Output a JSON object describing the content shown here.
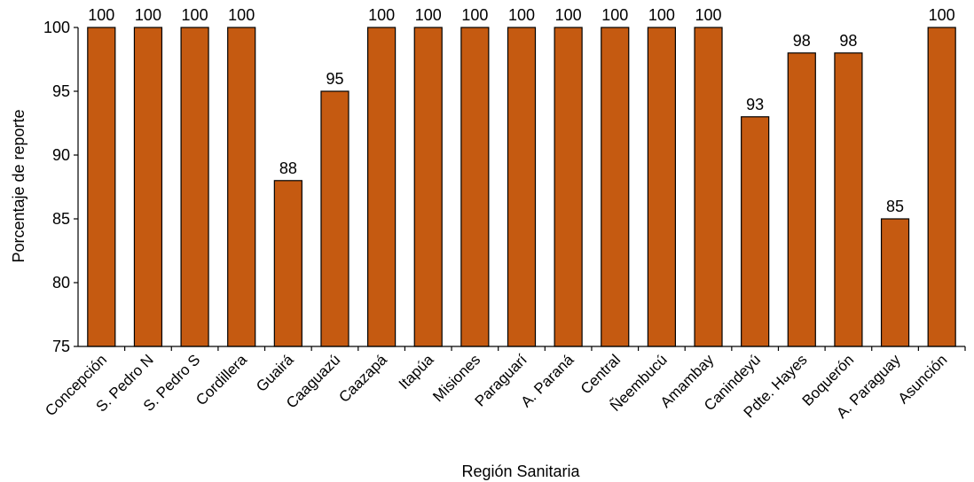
{
  "chart_data": {
    "type": "bar",
    "title": "",
    "xlabel": "Región Sanitaria",
    "ylabel": "Porcentaje de reporte",
    "ylim": [
      75,
      100
    ],
    "yticks": [
      75,
      80,
      85,
      90,
      95,
      100
    ],
    "grid": false,
    "legend": "none",
    "categories": [
      "Concepción",
      "S. Pedro N",
      "S. Pedro S",
      "Cordillera",
      "Guairá",
      "Caaguazú",
      "Caazapá",
      "Itapúa",
      "Misiones",
      "Paraguarí",
      "A. Paraná",
      "Central",
      "Ñeembucú",
      "Amambay",
      "Canindeyú",
      "Pdte. Hayes",
      "Boquerón",
      "A. Paraguay",
      "Asunción"
    ],
    "values": [
      100,
      100,
      100,
      100,
      88,
      95,
      100,
      100,
      100,
      100,
      100,
      100,
      100,
      100,
      93,
      98,
      98,
      85,
      100
    ],
    "bar_color": "#C55A11",
    "bar_outline_color": "#000000"
  }
}
